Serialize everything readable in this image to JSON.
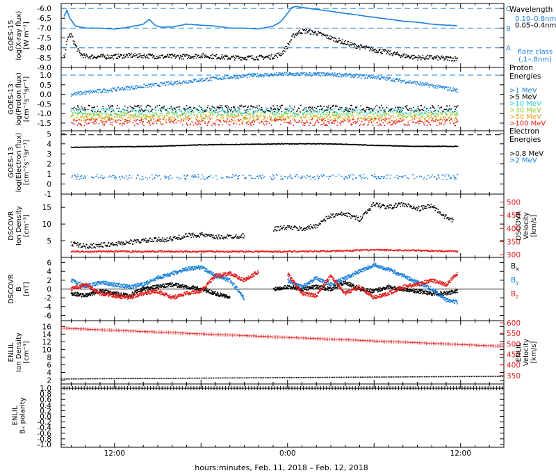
{
  "colors": {
    "axis": "#000000",
    "blue": "#1a7fd9",
    "black": "#000000",
    "red": "#e21b1b",
    "cyan": "#2ad2d8",
    "green": "#8fd12a",
    "orange": "#f0a020"
  },
  "xaxis": {
    "label": "hours:minutes, Feb. 11, 2018 – Feb. 12, 2018",
    "ticks": [
      {
        "hour": 12,
        "label": "12:00"
      },
      {
        "hour": 24,
        "label": "0:00"
      },
      {
        "hour": 36,
        "label": "12:00"
      }
    ],
    "range_hours": [
      8.3,
      39.0
    ]
  },
  "chart_data": [
    {
      "id": "xray",
      "type": "line",
      "ylabel": "GOES-15\nlog(X-ray flux)\n[W m⁻²]",
      "ylim": [
        -9.0,
        -5.75
      ],
      "yticks": [
        "-6.0",
        "-6.5",
        "-7.0",
        "-7.5",
        "-8.0",
        "-8.5",
        "-9.0"
      ],
      "ytick_values": [
        -6.0,
        -6.5,
        -7.0,
        -7.5,
        -8.0,
        -8.5,
        -9.0
      ],
      "flare_class_lines": [
        {
          "label": "C",
          "value": -6.0
        },
        {
          "label": "B",
          "value": -7.0
        },
        {
          "label": "A",
          "value": -8.0
        }
      ],
      "legend_title": "Wavelength",
      "flare_class_label": "flare class\n(.1–.8nm)",
      "series": [
        {
          "name": "0.10–0.8nm",
          "color": "blue",
          "style": "line",
          "x": [
            8.5,
            8.7,
            8.9,
            9.3,
            10,
            11,
            12,
            13,
            14,
            14.4,
            14.8,
            15.2,
            16,
            17,
            18,
            19,
            20,
            21,
            22,
            23,
            23.5,
            24,
            24.3,
            24.6,
            25,
            25.3,
            26,
            27,
            28,
            29,
            30,
            31,
            32,
            33,
            34,
            35,
            35.8
          ],
          "y": [
            -6.4,
            -6.1,
            -6.5,
            -6.9,
            -7.0,
            -7.0,
            -7.05,
            -6.95,
            -6.8,
            -6.55,
            -6.85,
            -6.95,
            -6.95,
            -6.8,
            -6.85,
            -6.9,
            -7.0,
            -7.0,
            -7.05,
            -6.9,
            -6.7,
            -6.25,
            -5.95,
            -5.9,
            -5.95,
            -5.98,
            -6.05,
            -6.15,
            -6.25,
            -6.35,
            -6.45,
            -6.55,
            -6.65,
            -6.7,
            -6.8,
            -6.85,
            -6.88
          ]
        },
        {
          "name": "0.05–0.4nm",
          "color": "black",
          "style": "dots",
          "x": [
            8.5,
            8.8,
            9.0,
            9.3,
            9.6,
            10,
            11,
            12,
            13,
            14,
            15,
            16,
            17,
            18,
            19,
            20,
            21,
            22,
            23,
            23.6,
            24.0,
            24.4,
            24.8,
            25.2,
            26,
            27,
            28,
            29,
            30,
            31,
            32,
            33,
            34,
            35,
            35.8
          ],
          "y": [
            -8.5,
            -7.4,
            -7.35,
            -7.9,
            -8.3,
            -8.45,
            -8.45,
            -8.45,
            -8.4,
            -8.4,
            -8.45,
            -8.45,
            -8.45,
            -8.4,
            -8.45,
            -8.5,
            -8.5,
            -8.5,
            -8.45,
            -8.3,
            -7.9,
            -7.4,
            -7.2,
            -7.15,
            -7.25,
            -7.5,
            -7.75,
            -7.95,
            -8.1,
            -8.25,
            -8.4,
            -8.5,
            -8.5,
            -8.55,
            -8.55
          ]
        }
      ]
    },
    {
      "id": "proton",
      "type": "scatter",
      "ylabel": "GOES-13\nlog(Proton flux)\n[cm⁻²s⁻¹sr⁻¹]",
      "ylim": [
        -1.9,
        1.4
      ],
      "yticks": [
        "1.0",
        "0.5",
        "0.0",
        "-0.5",
        "-1.0",
        "-1.5"
      ],
      "ytick_values": [
        1.0,
        0.5,
        0.0,
        -0.5,
        -1.0,
        -1.5
      ],
      "reference_line": 1.0,
      "legend_title": "Proton\nEnergies",
      "series": [
        {
          "name": ">1 MeV",
          "color": "blue",
          "x": [
            9,
            12,
            15,
            18,
            20,
            22,
            24,
            26,
            28,
            30,
            32,
            34,
            35.8
          ],
          "y": [
            0.0,
            0.25,
            0.5,
            0.75,
            0.9,
            1.0,
            1.05,
            1.05,
            1.0,
            0.9,
            0.7,
            0.45,
            0.2
          ]
        },
        {
          "name": ">5 MeV",
          "color": "black",
          "x": [
            9,
            35.8
          ],
          "y": [
            -0.75,
            -0.75
          ]
        },
        {
          "name": ">10 MeV",
          "color": "cyan",
          "x": [
            9,
            35.8
          ],
          "y": [
            -0.9,
            -0.9
          ]
        },
        {
          "name": ">30 MeV",
          "color": "green",
          "x": [
            9,
            35.8
          ],
          "y": [
            -1.1,
            -1.1
          ]
        },
        {
          "name": ">50 MeV",
          "color": "orange",
          "x": [
            9,
            35.8
          ],
          "y": [
            -1.25,
            -1.25
          ]
        },
        {
          "name": ">100 MeV",
          "color": "red",
          "x": [
            9,
            35.8
          ],
          "y": [
            -1.45,
            -1.45
          ]
        }
      ]
    },
    {
      "id": "electron",
      "type": "scatter",
      "ylabel": "GOES-13\nlog(Electron flux)\n[cm⁻²s⁻¹sr⁻¹]",
      "ylim": [
        -1.0,
        5.3
      ],
      "yticks": [
        "5",
        "4",
        "3",
        "2",
        "1",
        "0",
        "-1"
      ],
      "ytick_values": [
        5,
        4,
        3,
        2,
        1,
        0,
        -1
      ],
      "reference_line": 4.9,
      "legend_title": "Electron\nEnergies",
      "series": [
        {
          "name": ">0.8 MeV",
          "color": "black",
          "x": [
            9,
            12,
            15,
            18,
            21,
            24,
            27,
            30,
            33,
            35.8
          ],
          "y": [
            3.65,
            3.7,
            3.75,
            3.9,
            3.95,
            4.0,
            4.0,
            3.85,
            3.75,
            3.75
          ]
        },
        {
          "name": ">2 MeV",
          "color": "blue",
          "x": [
            9,
            35.8
          ],
          "y": [
            0.7,
            0.7
          ]
        }
      ]
    },
    {
      "id": "dscovr_plasma",
      "type": "scatter",
      "ylabel": "DSCOVR\nIon Density\n[cm⁻³]",
      "ylabel_right": "DSCOVR\nVelocity\n[km/s]",
      "ylim": [
        0,
        19
      ],
      "yticks": [
        "15",
        "10",
        "5"
      ],
      "ytick_values": [
        15,
        10,
        5
      ],
      "ylim_right": [
        290,
        530
      ],
      "yticks_right": [
        "500",
        "450",
        "400",
        "350",
        "300"
      ],
      "ytick_values_right": [
        500,
        450,
        400,
        350,
        300
      ],
      "series": [
        {
          "name": "Ion Density",
          "color": "black",
          "x": [
            9,
            10,
            12,
            14,
            16,
            17,
            18,
            19,
            20,
            21,
            22,
            23,
            24,
            25,
            26,
            27,
            28,
            29,
            30,
            31,
            32,
            33,
            34,
            35,
            35.5
          ],
          "y": [
            4.2,
            3.3,
            4.0,
            5.0,
            5.5,
            6.5,
            6.8,
            6.0,
            6.2,
            6.5,
            null,
            8.5,
            9.0,
            8.5,
            9.5,
            12.5,
            13.0,
            11.5,
            16.0,
            15.0,
            16.0,
            14.5,
            15.5,
            12.0,
            11.0
          ]
        },
        {
          "name": "Velocity",
          "color": "red",
          "axis": "right",
          "x": [
            9,
            12,
            15,
            18,
            21,
            24,
            27,
            30,
            33,
            35.8
          ],
          "y": [
            312,
            312,
            312,
            312,
            312,
            312,
            314,
            318,
            316,
            313
          ]
        }
      ]
    },
    {
      "id": "dscovr_mag",
      "type": "line",
      "ylabel": "DSCOVR\nB\n[nT]",
      "ylim": [
        -7.2,
        7.2
      ],
      "yticks": [
        "6",
        "4",
        "2",
        "0",
        "-2",
        "-4",
        "-6"
      ],
      "ytick_values": [
        6,
        4,
        2,
        0,
        -2,
        -4,
        -6
      ],
      "zero_line": true,
      "series": [
        {
          "name": "Bx",
          "label": "B",
          "sub": "x",
          "color": "black",
          "x": [
            9,
            10,
            11,
            12,
            13,
            14,
            15,
            16,
            17,
            18,
            19,
            20,
            21,
            22,
            23,
            24,
            25,
            26,
            27,
            28,
            29,
            30,
            31,
            32,
            33,
            34,
            35,
            35.8
          ],
          "y": [
            -1.0,
            -1.5,
            -0.5,
            -1.0,
            -1.5,
            0.0,
            0.5,
            1.0,
            0.5,
            0.0,
            -1.0,
            -2.0,
            null,
            null,
            0.0,
            0.5,
            0.0,
            0.5,
            0.0,
            1.5,
            0.0,
            -0.5,
            0.5,
            0.0,
            -0.5,
            -1.0,
            -1.0,
            -0.5
          ]
        },
        {
          "name": "By",
          "label": "B",
          "sub": "y",
          "color": "blue",
          "x": [
            9,
            10,
            11,
            12,
            13,
            14,
            15,
            16,
            17,
            18,
            19,
            20,
            21,
            22,
            23,
            24,
            25,
            26,
            27,
            28,
            29,
            30,
            31,
            32,
            33,
            34,
            35,
            35.8
          ],
          "y": [
            2.0,
            0.5,
            1.5,
            1.0,
            0.5,
            1.0,
            2.5,
            3.5,
            4.5,
            5.0,
            3.0,
            2.0,
            -2.0,
            null,
            null,
            2.0,
            0.5,
            2.5,
            1.0,
            2.5,
            4.0,
            5.5,
            4.5,
            3.0,
            1.5,
            0.0,
            -2.5,
            -3.0
          ]
        },
        {
          "name": "Bz",
          "label": "B",
          "sub": "z",
          "color": "red",
          "x": [
            9,
            10,
            11,
            12,
            13,
            14,
            15,
            16,
            17,
            18,
            19,
            20,
            21,
            22,
            23,
            24,
            25,
            26,
            27,
            28,
            29,
            30,
            31,
            32,
            33,
            34,
            35,
            35.8
          ],
          "y": [
            0.0,
            1.0,
            -1.0,
            -1.5,
            -2.0,
            -1.0,
            -0.5,
            -2.0,
            -1.0,
            -0.5,
            3.0,
            3.5,
            2.0,
            4.0,
            null,
            3.5,
            -1.0,
            -1.5,
            3.0,
            -1.0,
            0.5,
            -2.0,
            -1.0,
            0.5,
            1.0,
            2.0,
            1.0,
            3.5
          ]
        }
      ]
    },
    {
      "id": "enlil_plasma",
      "type": "scatter",
      "ylabel": "ENLIL\nIon Density\n[cm⁻³]",
      "ylabel_right": "ENLIL\nVelocity\n[km/s]",
      "ylim": [
        1.0,
        17.5
      ],
      "yticks": [
        "16",
        "14",
        "12",
        "10",
        "8",
        "6",
        "4",
        "2"
      ],
      "ytick_values": [
        16,
        14,
        12,
        10,
        8,
        6,
        4,
        2
      ],
      "ylim_right": [
        310,
        610
      ],
      "yticks_right": [
        "600",
        "550",
        "500",
        "450",
        "400",
        "350"
      ],
      "ytick_values_right": [
        600,
        550,
        500,
        450,
        400,
        350
      ],
      "series": [
        {
          "name": "Ion Density",
          "color": "black",
          "x": [
            8.3,
            39.0
          ],
          "y": [
            2.3,
            3.0
          ]
        },
        {
          "name": "Velocity",
          "color": "red",
          "axis": "right",
          "x": [
            8.3,
            39.0
          ],
          "y": [
            576,
            490
          ]
        }
      ]
    },
    {
      "id": "enlil_polarity",
      "type": "line",
      "ylabel": "ENLIL\nBₓ polarity",
      "ylim": [
        -1.1,
        1.15
      ],
      "yticks": [
        "1.0",
        "0.8",
        "0.6",
        "0.4",
        "0.2",
        "0.0",
        "-0.2",
        "-0.4",
        "-0.6",
        "-0.8",
        "-1.0"
      ],
      "ytick_values": [
        1.0,
        0.8,
        0.6,
        0.4,
        0.2,
        0.0,
        -0.2,
        -0.4,
        -0.6,
        -0.8,
        -1.0
      ],
      "series": [
        {
          "name": "Bx polarity",
          "color": "black",
          "x": [
            8.3,
            39.0
          ],
          "y": [
            1.0,
            1.0
          ]
        }
      ]
    }
  ]
}
